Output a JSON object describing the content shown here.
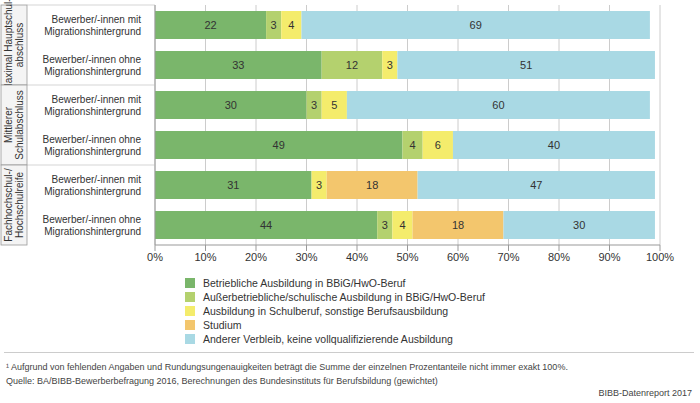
{
  "chart_data": {
    "type": "bar",
    "orientation": "horizontal",
    "stacked": true,
    "data_labels": true,
    "grid": true,
    "categories": [
      "Bewerber/-innen mit Migrationshintergrund",
      "Bewerber/-innen ohne Migrationshintergrund",
      "Bewerber/-innen mit Migrationshintergrund",
      "Bewerber/-innen ohne Migrationshintergrund",
      "Bewerber/-innen mit Migrationshintergrund",
      "Bewerber/-innen ohne Migrationshintergrund"
    ],
    "groups": [
      {
        "label": [
          "Maximal Hauptschul-",
          "abschluss"
        ],
        "size": 2
      },
      {
        "label": [
          "Mittlerer",
          "Schulabschluss"
        ],
        "size": 2
      },
      {
        "label": [
          "Fachhochschul-/",
          "Hochschulreife"
        ],
        "size": 2
      }
    ],
    "series": [
      {
        "name": "Betriebliche Ausbildung in BBiG/HwO-Beruf",
        "color": "#7ab66b",
        "values": [
          22,
          33,
          30,
          49,
          31,
          44
        ]
      },
      {
        "name": "Außerbetriebliche/schulische Ausbildung in BBiG/HwO-Beruf",
        "color": "#b4d16e",
        "values": [
          3,
          12,
          3,
          4,
          null,
          3
        ]
      },
      {
        "name": "Ausbildung in Schulberuf, sonstige Berufsausbildung",
        "color": "#f4ec6c",
        "values": [
          4,
          3,
          5,
          6,
          3,
          4
        ]
      },
      {
        "name": "Studium",
        "color": "#f3c66d",
        "values": [
          null,
          null,
          null,
          null,
          18,
          18
        ]
      },
      {
        "name": "Anderer Verbleib, keine vollqualifizierende Ausbildung",
        "color": "#a9d9e4",
        "values": [
          69,
          51,
          60,
          40,
          47,
          30
        ]
      }
    ],
    "xlim": [
      0,
      100
    ],
    "xticks": [
      {
        "value": 0,
        "label": "0%"
      },
      {
        "value": 10,
        "label": "10%"
      },
      {
        "value": 20,
        "label": "20%"
      },
      {
        "value": 30,
        "label": "30%"
      },
      {
        "value": 40,
        "label": "40%"
      },
      {
        "value": 50,
        "label": "50%"
      },
      {
        "value": 60,
        "label": "60%"
      },
      {
        "value": 70,
        "label": "70%"
      },
      {
        "value": 80,
        "label": "80%"
      },
      {
        "value": 90,
        "label": "90%"
      },
      {
        "value": 100,
        "label": "100%"
      }
    ],
    "notes": [
      "¹ Aufgrund von fehlenden Angaben und Rundungsungenauigkeiten beträgt die Summe der einzelnen Prozentanteile nicht immer exakt 100%.",
      "Quelle: BA/BIBB-Bewerberbefragung 2016, Berechnungen des Bundesinstituts für Berufsbildung (gewichtet)"
    ],
    "credit": "BIBB-Datenreport 2017"
  }
}
